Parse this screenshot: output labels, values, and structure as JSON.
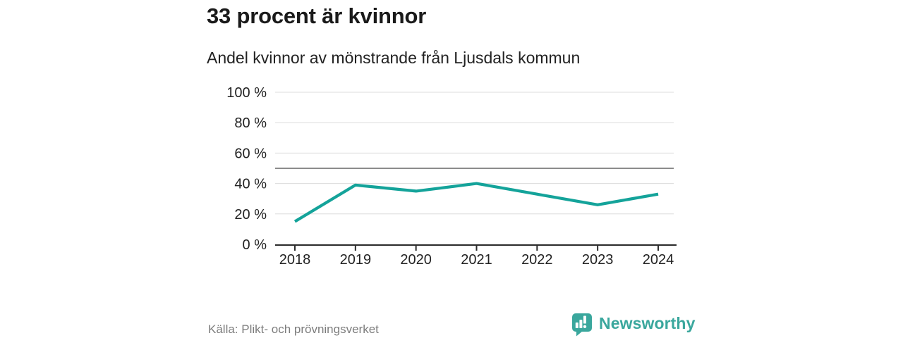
{
  "header": {
    "title": "33 procent är kvinnor",
    "subtitle": "Andel kvinnor av mönstrande från Ljusdals kommun"
  },
  "chart_data": {
    "type": "line",
    "title": "33 procent är kvinnor",
    "subtitle": "Andel kvinnor av mönstrande från Ljusdals kommun",
    "categories": [
      "2018",
      "2019",
      "2020",
      "2021",
      "2022",
      "2023",
      "2024"
    ],
    "series": [
      {
        "name": "Andel kvinnor av mönstrande",
        "values": [
          15,
          39,
          35,
          40,
          33,
          26,
          33
        ]
      }
    ],
    "xlabel": "",
    "ylabel": "",
    "ylim": [
      0,
      100
    ],
    "yticks": [
      {
        "value": 0,
        "label": "0 %"
      },
      {
        "value": 20,
        "label": "20 %"
      },
      {
        "value": 40,
        "label": "40 %"
      },
      {
        "value": 60,
        "label": "60 %"
      },
      {
        "value": 80,
        "label": "80 %"
      },
      {
        "value": 100,
        "label": "100 %"
      }
    ],
    "reference_line": {
      "value": 50
    },
    "grid": "horizontal",
    "legend": "none"
  },
  "footer": {
    "source": "Källa: Plikt- och prövningsverket",
    "logo_text": "Newsworthy"
  },
  "colors": {
    "line": "#14a39a",
    "logo": "#3aa79d",
    "grid": "#dcdcdc",
    "reference": "#666666",
    "axis": "#2b2b2b",
    "tick_text": "#222222",
    "muted": "#7d7d7d"
  }
}
